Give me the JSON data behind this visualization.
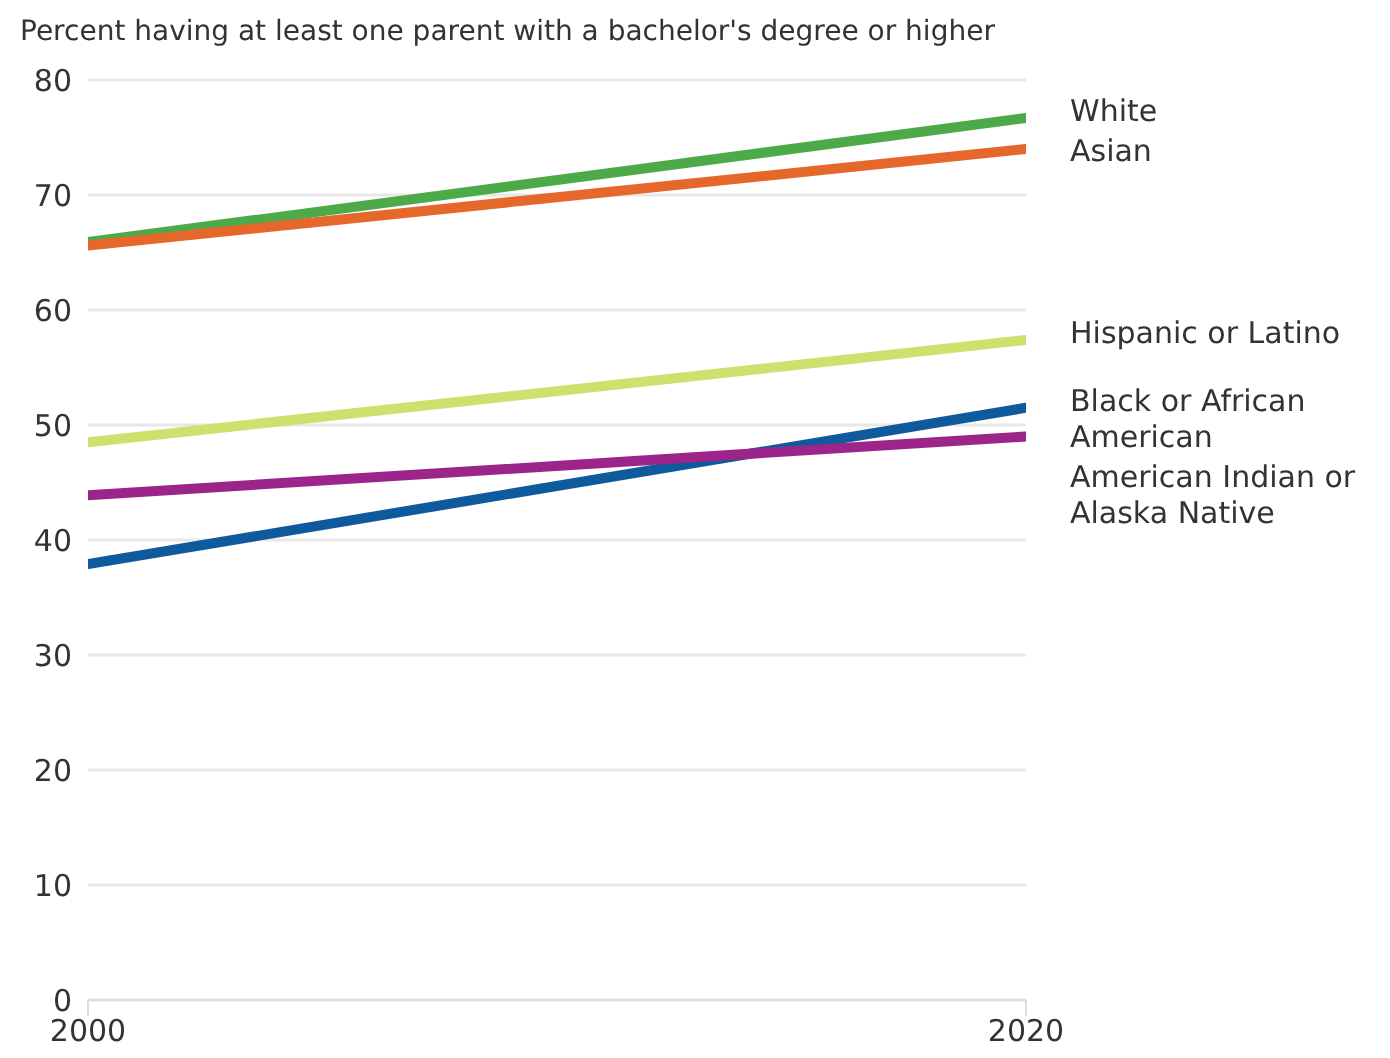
{
  "chart_data": {
    "type": "line",
    "title": "Percent having at least one parent with a bachelor's degree or higher",
    "x": [
      2000,
      2020
    ],
    "xlim": [
      2000,
      2020
    ],
    "xticks": [
      2000,
      2020
    ],
    "ylim": [
      0,
      80
    ],
    "yticks": [
      0,
      10,
      20,
      30,
      40,
      50,
      60,
      70,
      80
    ],
    "grid": "y",
    "legend": false,
    "marker": "none",
    "line_style": "solid",
    "series": [
      {
        "name": "White",
        "color": "#4caa48",
        "values": [
          65.9,
          76.7
        ]
      },
      {
        "name": "Asian",
        "color": "#e5672a",
        "values": [
          65.6,
          74.0
        ]
      },
      {
        "name": "Hispanic or Latino",
        "color": "#cfe06e",
        "values": [
          48.5,
          57.4
        ]
      },
      {
        "name": "Black or African American",
        "color": "#0e5a9c",
        "values": [
          37.9,
          51.5
        ]
      },
      {
        "name": "American Indian or Alaska Native",
        "color": "#9c248a",
        "values": [
          43.9,
          49.0
        ]
      }
    ]
  }
}
